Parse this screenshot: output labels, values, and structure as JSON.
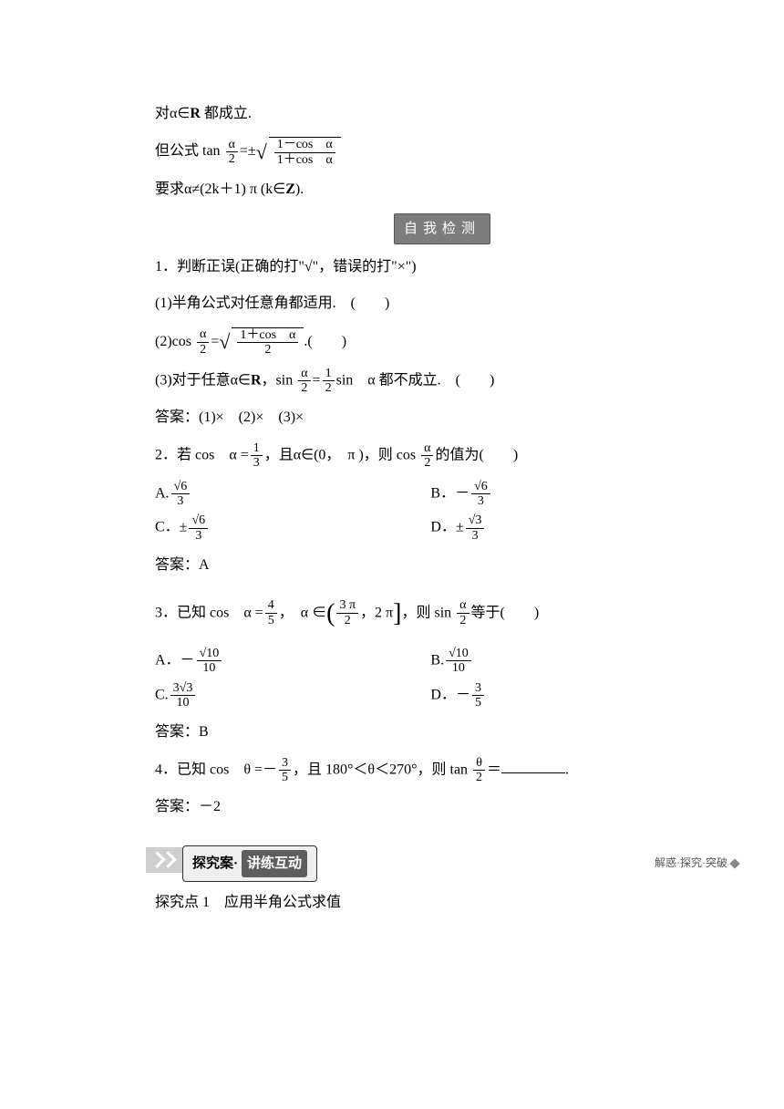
{
  "intro": {
    "line1_pre": "对",
    "line1_mid": "α∈",
    "line1_bold": "R",
    "line1_post": " 都成立.",
    "line2_pre": "但公式 tan ",
    "line2_frac_num": "α",
    "line2_frac_den": "2",
    "line2_eq": "=±",
    "line2_sqrt_num": "1－cos　α",
    "line2_sqrt_den": "1＋cos　α",
    "line3_pre": "要求",
    "line3_mid": "α≠(2k＋1) π (k∈",
    "line3_bold": "Z",
    "line3_post": ")."
  },
  "badge": "自我检测",
  "q1": {
    "stem": "1．判断正误(正确的打\"√\"，错误的打\"×\")",
    "part1": "(1)半角公式对任意角都适用.　(　　)",
    "part2_pre": "(2)cos ",
    "part2_frac_num": "α",
    "part2_frac_den": "2",
    "part2_eq": "=",
    "part2_sqrt_num": "1＋cos　α",
    "part2_sqrt_den": "2",
    "part2_post": ".(　　)",
    "part3_pre": "(3)对于任意α∈",
    "part3_bold": "R",
    "part3_mid1": "，sin ",
    "part3_f1_num": "α",
    "part3_f1_den": "2",
    "part3_eq": "=",
    "part3_f2_num": "1",
    "part3_f2_den": "2",
    "part3_mid2": "sin　α 都不成立.　(　　)",
    "answer": "答案：(1)×　(2)×　(3)×"
  },
  "q2": {
    "stem_pre": "2．若 cos　α =",
    "f1_num": "1",
    "f1_den": "3",
    "stem_mid": "，且α∈(0，　π )，则 cos ",
    "f2_num": "α",
    "f2_den": "2",
    "stem_post": "的值为(　　)",
    "optA_pre": "A.",
    "optA_num": "√6",
    "optA_den": "3",
    "optB_pre": "B．－",
    "optB_num": "√6",
    "optB_den": "3",
    "optC_pre": "C．±",
    "optC_num": "√6",
    "optC_den": "3",
    "optD_pre": "D．±",
    "optD_num": "√3",
    "optD_den": "3",
    "answer": "答案：A"
  },
  "q3": {
    "stem_pre": "3．已知 cos　α =",
    "f1_num": "4",
    "f1_den": "5",
    "stem_mid1": "，　α ∈",
    "int_num": "3 π",
    "int_den": "2",
    "stem_mid2": "，2 π",
    "stem_mid3": "，则 sin ",
    "f2_num": "α",
    "f2_den": "2",
    "stem_post": "等于(　　)",
    "optA_pre": "A．－",
    "optA_num": "√10",
    "optA_den": "10",
    "optB_pre": "B.",
    "optB_num": "√10",
    "optB_den": "10",
    "optC_pre": "C.",
    "optC_num": "3√3",
    "optC_den": "10",
    "optD_pre": "D．－",
    "optD_num": "3",
    "optD_den": "5",
    "answer": "答案：B"
  },
  "q4": {
    "stem_pre": "4．已知 cos　θ =－",
    "f1_num": "3",
    "f1_den": "5",
    "stem_mid": "，且 180°＜θ＜270°，则 tan ",
    "f2_num": "θ",
    "f2_den": "2",
    "stem_post": "＝",
    "stem_end": ".",
    "answer": "答案：－2"
  },
  "banner": {
    "left_light": "探究案",
    "dot": "·",
    "left_dark": "讲练互动",
    "right": "解惑·探究·突破"
  },
  "topic": "探究点 1　应用半角公式求值"
}
